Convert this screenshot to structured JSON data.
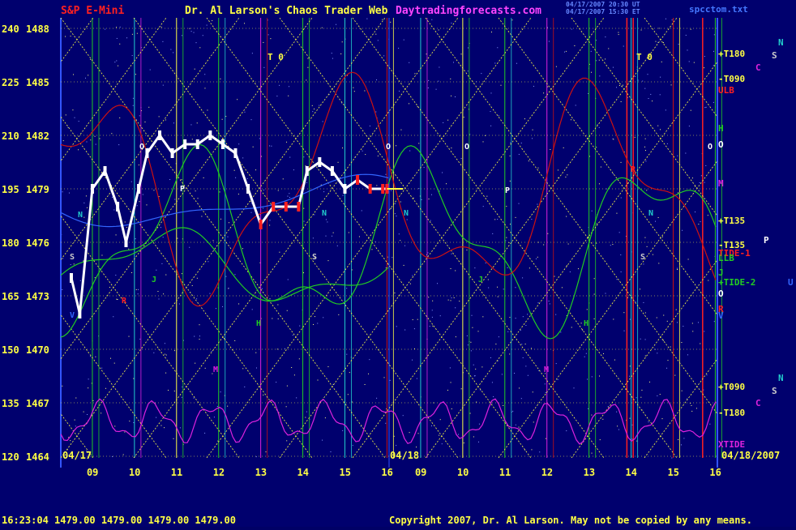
{
  "header": {
    "left_title": "S&P E-Mini",
    "center_title": "Dr. Al Larson's Chaos Trader Web",
    "site": "Daytradingforecasts.com",
    "timestamp_1": "04/17/2007 20:30 UT",
    "timestamp_2": "04/17/2007 15:30 ET",
    "file": "spcctom.txt"
  },
  "footer": {
    "quote": "16:23:04 1479.00 1479.00 1479.00 1479.00",
    "copyright": "Copyright 2007, Dr. Al Larson. May not be copied by any means."
  },
  "colors": {
    "background": "#00006e",
    "grid_yellow": "#ffff44",
    "price_white": "#ffffff",
    "price_red": "#ff2020",
    "tide_green": "#22cc22",
    "red_line": "#cc1111",
    "magenta": "#dd22dd",
    "blue_line": "#3366ff"
  },
  "chart_data": {
    "type": "line",
    "y_price_ticks": [
      1488,
      1485,
      1482,
      1479,
      1476,
      1473,
      1470,
      1467,
      1464
    ],
    "y_index_ticks": [
      240,
      225,
      210,
      195,
      180,
      165,
      150,
      135,
      120
    ],
    "ylim": [
      1464,
      1488
    ],
    "x_hours_day1": [
      "09",
      "10",
      "11",
      "12",
      "13",
      "14",
      "15",
      "16"
    ],
    "x_hours_day2": [
      "09",
      "10",
      "11",
      "12",
      "13",
      "14",
      "15",
      "16"
    ],
    "date_labels": [
      "04/17",
      "04/18",
      "04/18/2007"
    ],
    "top_markers": [
      "T 0",
      "T 0"
    ],
    "right_labels": [
      {
        "text": "+T180",
        "color": "#ffff44"
      },
      {
        "text": "-T090",
        "color": "#ffff44"
      },
      {
        "text": "ULB",
        "color": "#ff2020"
      },
      {
        "text": "H",
        "color": "#22cc22"
      },
      {
        "text": "O",
        "color": "#ffffff"
      },
      {
        "text": "M",
        "color": "#dd22dd"
      },
      {
        "text": "+T135",
        "color": "#ffff44"
      },
      {
        "text": "-T135",
        "color": "#ffff44"
      },
      {
        "text": "TIDE-1",
        "color": "#ff2020"
      },
      {
        "text": "LLB",
        "color": "#22cc22"
      },
      {
        "text": "J",
        "color": "#22cc22"
      },
      {
        "text": "+TIDE-2",
        "color": "#22cc22"
      },
      {
        "text": "O",
        "color": "#ffffff"
      },
      {
        "text": "R",
        "color": "#ff2020"
      },
      {
        "text": "V",
        "color": "#3366ff"
      },
      {
        "text": "+T090",
        "color": "#ffff44"
      },
      {
        "text": "-T180",
        "color": "#ffff44"
      },
      {
        "text": "XTIDE",
        "color": "#dd22dd"
      }
    ],
    "far_right_labels": [
      {
        "text": "N",
        "color": "#22cccc"
      },
      {
        "text": "S",
        "color": "#cccccc"
      },
      {
        "text": "C",
        "color": "#dd22dd"
      },
      {
        "text": "P",
        "color": "#ffffff"
      },
      {
        "text": "U",
        "color": "#3366ff"
      },
      {
        "text": "N",
        "color": "#22cccc"
      },
      {
        "text": "S",
        "color": "#cccccc"
      },
      {
        "text": "C",
        "color": "#dd22dd"
      }
    ],
    "planet_markers": [
      "O",
      "P",
      "N",
      "S",
      "M",
      "J",
      "R",
      "V",
      "H"
    ],
    "price_series": {
      "name": "",
      "x_hours": [
        8.5,
        8.7,
        9.0,
        9.3,
        9.6,
        9.8,
        10.1,
        10.3,
        10.6,
        10.9,
        11.2,
        11.5,
        11.8,
        12.1,
        12.4,
        12.7,
        13.0,
        13.3,
        13.6,
        13.9,
        14.1,
        14.4,
        14.7,
        15.0,
        15.3,
        15.6,
        15.9,
        16.0
      ],
      "y": [
        1474,
        1472,
        1479,
        1480,
        1478,
        1476,
        1479,
        1481,
        1482,
        1481,
        1481.5,
        1481.5,
        1482,
        1481.5,
        1481,
        1479,
        1477,
        1478,
        1478,
        1478,
        1480,
        1480.5,
        1480,
        1479,
        1479.5,
        1479,
        1479,
        1479
      ]
    }
  }
}
